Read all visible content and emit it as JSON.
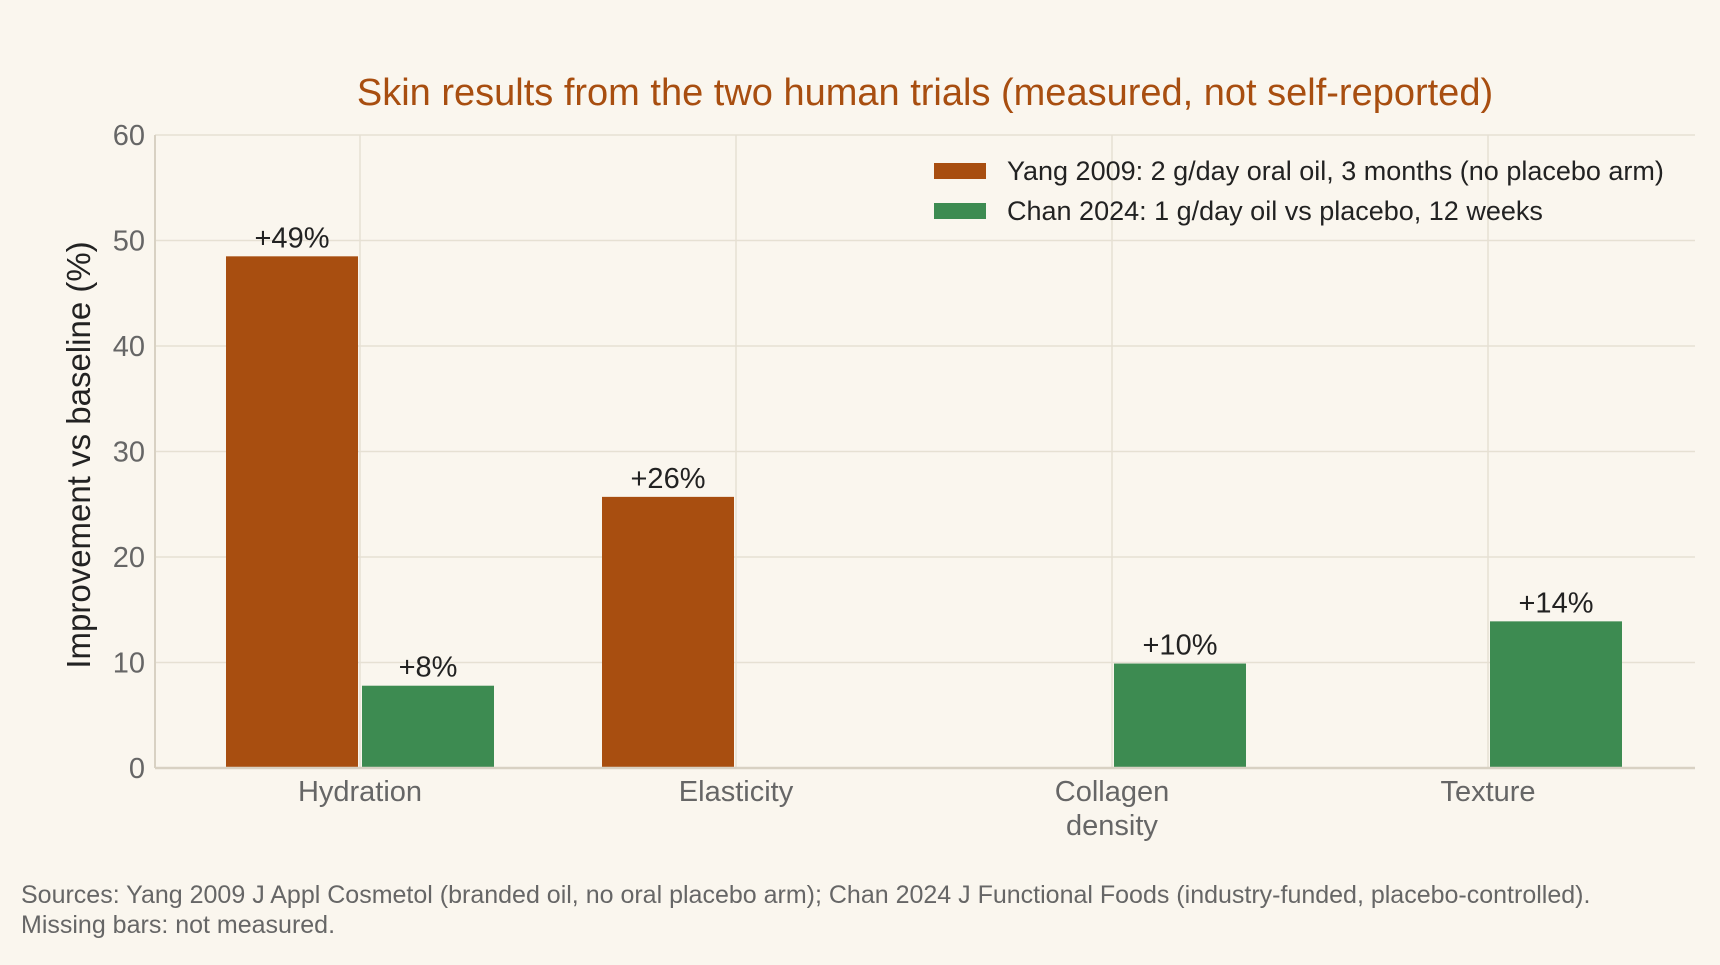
{
  "chart_data": {
    "type": "bar",
    "title": "Skin results from the two human trials (measured, not self-reported)",
    "xlabel": "",
    "ylabel": "Improvement vs baseline (%)",
    "ylim": [
      0,
      60
    ],
    "yticks": [
      "0",
      "10",
      "20",
      "30",
      "40",
      "50",
      "60"
    ],
    "grid": true,
    "legend_position": "top-right",
    "categories": [
      "Hydration",
      "Elasticity",
      "Collagen density",
      "Texture"
    ],
    "category_tick_lines": [
      [
        "Hydration"
      ],
      [
        "Elasticity"
      ],
      [
        "Collagen",
        "density"
      ],
      [
        "Texture"
      ]
    ],
    "series": [
      {
        "name": "Yang 2009: 2 g/day oral oil, 3 months (no placebo arm)",
        "color": "#a84e10",
        "values": [
          48.5,
          25.7,
          null,
          null
        ],
        "labels": [
          "+49%",
          "+26%",
          null,
          null
        ]
      },
      {
        "name": "Chan 2024: 1 g/day oil vs placebo, 12 weeks",
        "color": "#3d8b51",
        "values": [
          7.8,
          null,
          9.9,
          13.9
        ],
        "labels": [
          "+8%",
          null,
          "+10%",
          "+14%"
        ]
      }
    ],
    "colors": {
      "title": "#a84e10",
      "background": "#faf6ee",
      "grid": "#e6e0d3",
      "axis": "#d8d1c3",
      "tick_text": "#666666",
      "label_text": "#222222"
    }
  },
  "footnote": {
    "line1": "Sources: Yang 2009 J Appl Cosmetol (branded oil, no oral placebo arm); Chan 2024 J Functional Foods (industry-funded, placebo-controlled).",
    "line2": "Missing bars: not measured."
  }
}
